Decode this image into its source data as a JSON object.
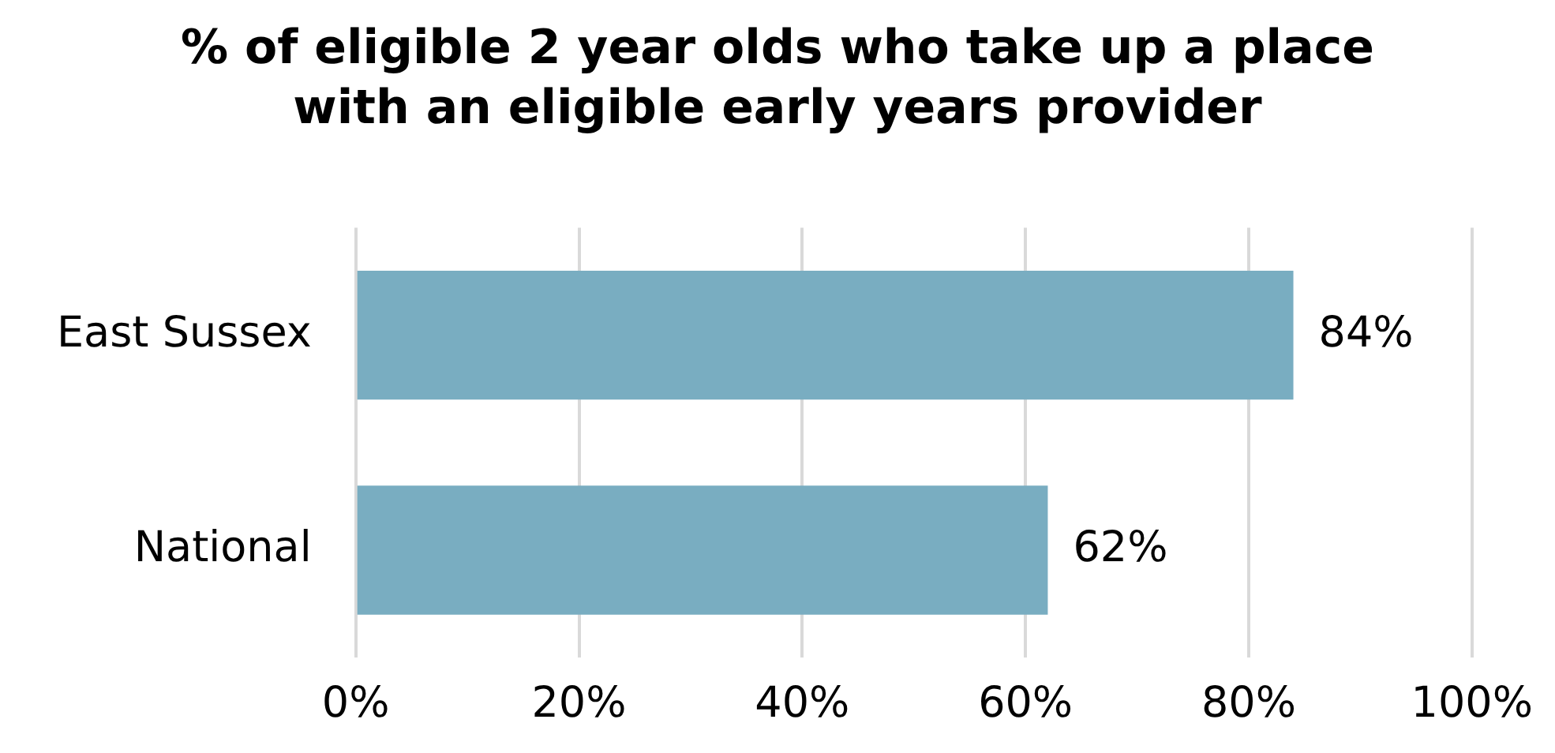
{
  "chart_data": {
    "type": "bar",
    "orientation": "horizontal",
    "title": "% of eligible 2 year olds who take up a place with an eligible early years provider",
    "categories": [
      "East Sussex",
      "National"
    ],
    "values": [
      84,
      62
    ],
    "value_labels": [
      "84%",
      "62%"
    ],
    "color": "#79adc1",
    "xlim": [
      0,
      100
    ],
    "xticks": [
      {
        "value": 0,
        "label": "0%"
      },
      {
        "value": 20,
        "label": "20%"
      },
      {
        "value": 40,
        "label": "40%"
      },
      {
        "value": 60,
        "label": "60%"
      },
      {
        "value": 80,
        "label": "80%"
      },
      {
        "value": 100,
        "label": "100%"
      }
    ],
    "grid": "x",
    "legend": false
  }
}
